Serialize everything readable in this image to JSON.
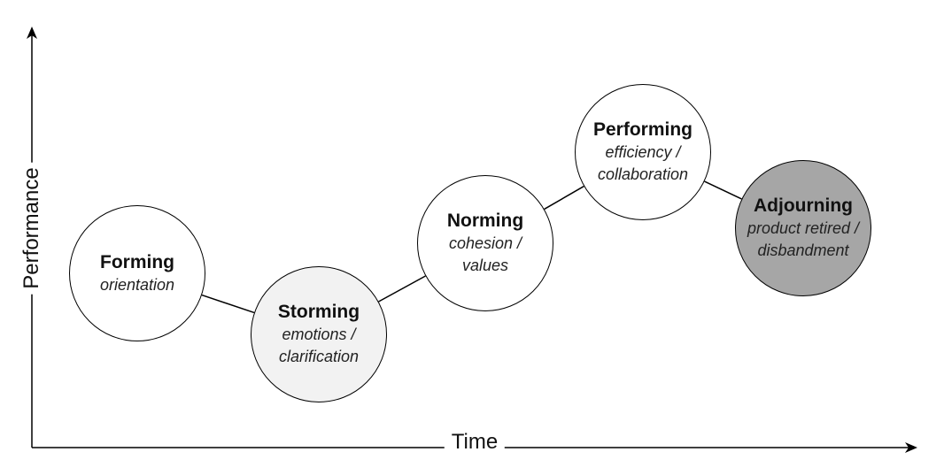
{
  "axes": {
    "x_label": "Time",
    "y_label": "Performance"
  },
  "stages": [
    {
      "name": "Forming",
      "description": [
        "orientation"
      ],
      "fill": "#ffffff"
    },
    {
      "name": "Storming",
      "description": [
        "emotions /",
        "clarification"
      ],
      "fill": "#f2f2f2"
    },
    {
      "name": "Norming",
      "description": [
        "cohesion /",
        "values"
      ],
      "fill": "#ffffff"
    },
    {
      "name": "Performing",
      "description": [
        "efficiency /",
        "collaboration"
      ],
      "fill": "#ffffff"
    },
    {
      "name": "Adjourning",
      "description": [
        "product retired /",
        "disbandment"
      ],
      "fill": "#a6a6a6"
    }
  ],
  "colors": {
    "line": "#000000"
  }
}
